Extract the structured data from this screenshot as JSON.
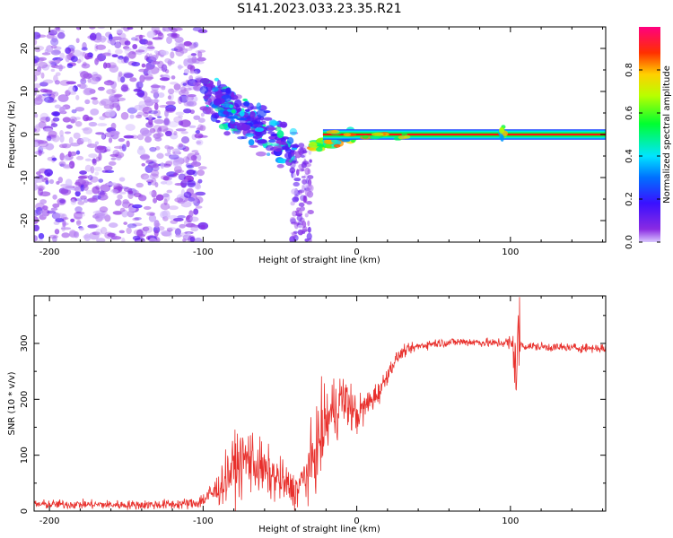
{
  "figure": {
    "title": "S141.2023.033.23.35.R21"
  },
  "colors": {
    "snr_line": "#e8302c",
    "axes": "#000000",
    "background": "#ffffff"
  },
  "chart_data": [
    {
      "type": "heatmap",
      "title": "",
      "xlabel": "Height of straight line (km)",
      "ylabel": "Frequency (Hz)",
      "xlim": [
        -210,
        162
      ],
      "ylim": [
        -25,
        25
      ],
      "xticks": [
        -200,
        -100,
        0,
        100
      ],
      "yticks": [
        -20,
        -10,
        0,
        10,
        20
      ],
      "colorbar": {
        "label": "Normalized spectral amplitude",
        "range": [
          0,
          1
        ],
        "ticks": [
          "0.0",
          "0.2",
          "0.4",
          "0.6",
          "0.8"
        ],
        "colormap": "gist_rainbow (violet → blue → cyan → green → yellow → red → magenta)"
      },
      "features": [
        {
          "x_range": [
            -210,
            -100
          ],
          "y_range": [
            -25,
            25
          ],
          "amplitude": "low (0.0–0.2)",
          "description": "noise"
        },
        {
          "x_range": [
            -100,
            -40
          ],
          "y_trend": [
            10,
            -4
          ],
          "amplitude": "0.1–0.5"
        },
        {
          "x_range": [
            -40,
            -30
          ],
          "y_range": [
            -25,
            -2
          ],
          "amplitude": "0.0–0.2"
        },
        {
          "x_range": [
            -30,
            0
          ],
          "y_trend": [
            -3,
            0
          ],
          "amplitude": "0.3–0.9"
        },
        {
          "x_range": [
            0,
            162
          ],
          "y": 0,
          "amplitude": "0.9–1.0"
        },
        {
          "x": 95,
          "y_range": [
            -2,
            3
          ],
          "amplitude": "0.3–0.7"
        }
      ]
    },
    {
      "type": "line",
      "title": "",
      "xlabel": "Height of straight line (km)",
      "ylabel": "SNR (10 * v/v)",
      "xlim": [
        -210,
        162
      ],
      "ylim": [
        0,
        385
      ],
      "xticks": [
        -200,
        -100,
        0,
        100
      ],
      "yticks": [
        0,
        100,
        200,
        300
      ],
      "series": [
        {
          "x": [
            -210,
            -180,
            -150,
            -120,
            -105,
            -100,
            -90,
            -80,
            -70,
            -60,
            -50,
            -45,
            -40,
            -35,
            -30,
            -25,
            -20,
            -15,
            -10,
            -5,
            0,
            5,
            10,
            15,
            20,
            25,
            30,
            40,
            50,
            60,
            70,
            80,
            90,
            95,
            100,
            102,
            104,
            105,
            106,
            110,
            120,
            130,
            140,
            150,
            162
          ],
          "y": [
            12,
            12,
            11,
            12,
            14,
            20,
            40,
            80,
            95,
            70,
            55,
            45,
            35,
            55,
            80,
            120,
            160,
            180,
            200,
            190,
            170,
            185,
            200,
            215,
            245,
            270,
            285,
            295,
            300,
            302,
            303,
            302,
            300,
            302,
            300,
            290,
            240,
            320,
            300,
            295,
            294,
            293,
            292,
            292,
            291
          ],
          "noise": [
            8,
            8,
            8,
            9,
            10,
            15,
            30,
            55,
            60,
            45,
            40,
            35,
            30,
            45,
            60,
            70,
            70,
            60,
            55,
            45,
            35,
            30,
            25,
            20,
            15,
            12,
            10,
            8,
            8,
            8,
            8,
            8,
            8,
            10,
            15,
            40,
            60,
            40,
            15,
            8,
            8,
            8,
            8,
            8,
            8
          ]
        }
      ]
    }
  ]
}
